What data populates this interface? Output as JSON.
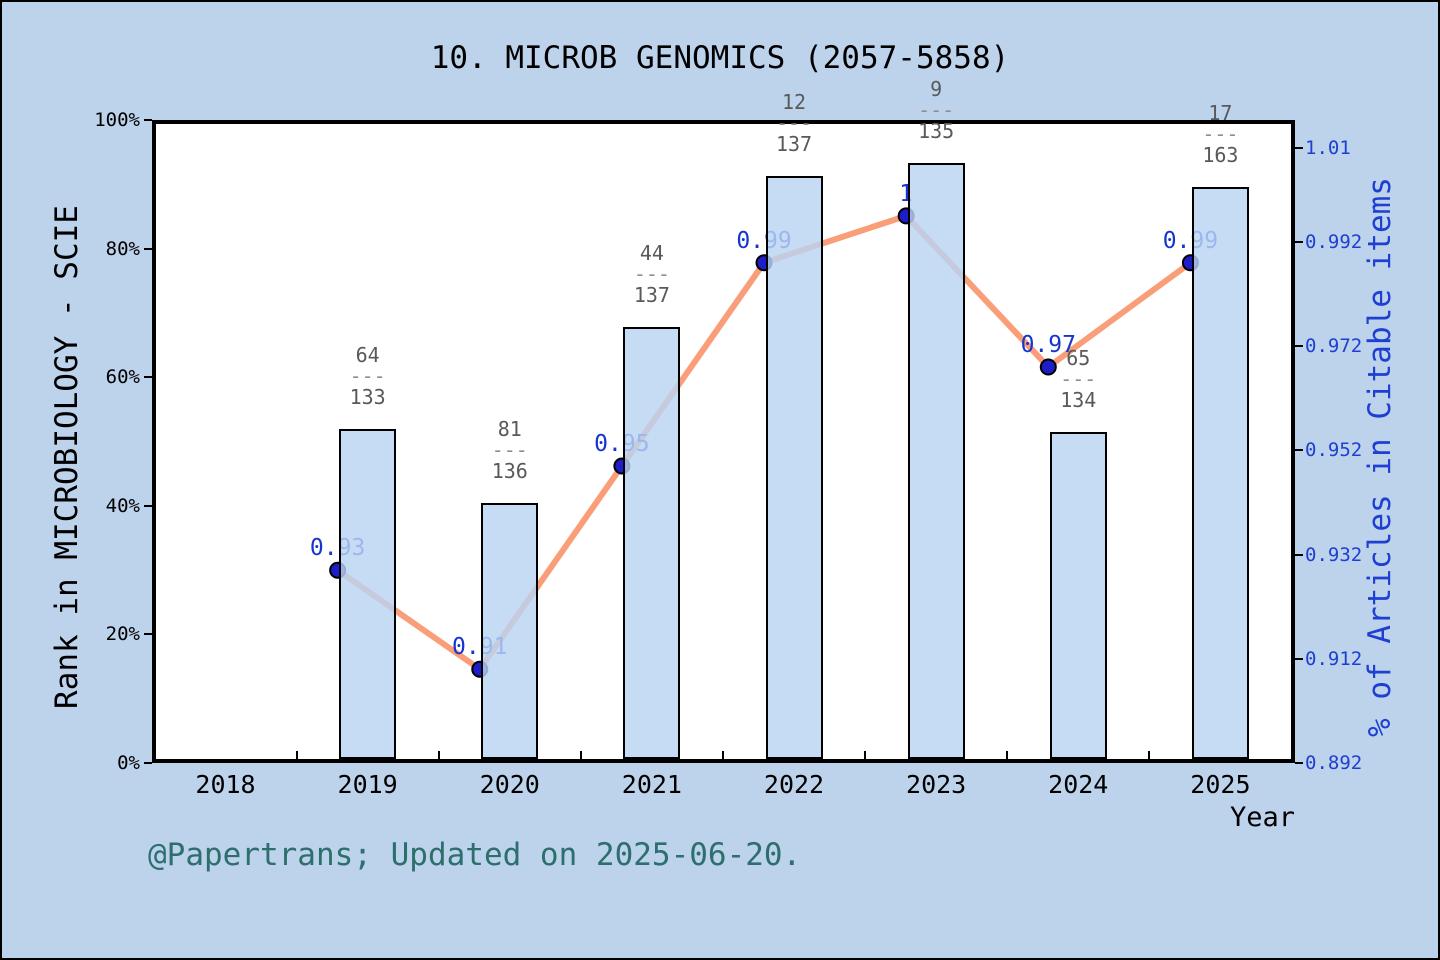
{
  "caption": "@Papertrans; Updated on 2025-06-20.",
  "colors": {
    "figure_bg": "#bdd2eb",
    "plot_bg": "#ffffff",
    "bar_fill": "rgba(185,212,243,0.82)",
    "bar_edge": "#000000",
    "line": "#f99e79",
    "marker": "#1e1ec8",
    "marker_edge": "#000000",
    "point_label": "#1535cd",
    "right_axis_text": "#1e3fd2",
    "fraction_text": "#595959",
    "fraction_dash": "#8f8f8f",
    "caption_text": "#2d6f6d",
    "axis": "#000000"
  },
  "chart_data": {
    "type": "bar+line",
    "title": "10. MICROB GENOMICS (2057-5858)",
    "categories": [
      "2018",
      "2019",
      "2020",
      "2021",
      "2022",
      "2023",
      "2024",
      "2025"
    ],
    "x_axis": {
      "label": "Year",
      "ticks": [
        "2018",
        "2019",
        "2020",
        "2021",
        "2022",
        "2023",
        "2024",
        "2025"
      ]
    },
    "left_axis": {
      "label": "Rank in MICROBIOLOGY - SCIE",
      "range": [
        0,
        100
      ],
      "ticks": [
        {
          "label": "0%",
          "value": 0
        },
        {
          "label": "20%",
          "value": 20
        },
        {
          "label": "40%",
          "value": 40
        },
        {
          "label": "60%",
          "value": 60
        },
        {
          "label": "80%",
          "value": 80
        },
        {
          "label": "100%",
          "value": 100
        }
      ]
    },
    "right_axis": {
      "label": "% of Articles in Citable items",
      "range": [
        0.892,
        1.0154
      ],
      "ticks": [
        {
          "label": "0.892",
          "value": 0.892
        },
        {
          "label": "0.912",
          "value": 0.912
        },
        {
          "label": "0.932",
          "value": 0.932
        },
        {
          "label": "0.952",
          "value": 0.952
        },
        {
          "label": "0.972",
          "value": 0.972
        },
        {
          "label": "0.992",
          "value": 0.992
        },
        {
          "label": "1.01",
          "value": 1.01
        }
      ]
    },
    "bars": {
      "name": "rank-in-category-fraction",
      "separator": "---",
      "values": [
        {
          "year": "2019",
          "numerator": 64,
          "denominator": 133
        },
        {
          "year": "2020",
          "numerator": 81,
          "denominator": 136
        },
        {
          "year": "2021",
          "numerator": 44,
          "denominator": 137
        },
        {
          "year": "2022",
          "numerator": 12,
          "denominator": 137
        },
        {
          "year": "2023",
          "numerator": 9,
          "denominator": 135
        },
        {
          "year": "2024",
          "numerator": 65,
          "denominator": 134
        },
        {
          "year": "2025",
          "numerator": 17,
          "denominator": 163
        }
      ]
    },
    "line": {
      "name": "pct-articles-in-citable-items",
      "points": [
        {
          "year": "2019",
          "label": "0.93",
          "value": 0.929
        },
        {
          "year": "2020",
          "label": "0.91",
          "value": 0.91
        },
        {
          "year": "2021",
          "label": "0.95",
          "value": 0.949
        },
        {
          "year": "2022",
          "label": "0.99",
          "value": 0.988
        },
        {
          "year": "2023",
          "label": "1",
          "value": 0.997
        },
        {
          "year": "2024",
          "label": "0.97",
          "value": 0.968
        },
        {
          "year": "2025",
          "label": "0.99",
          "value": 0.988
        }
      ]
    }
  }
}
